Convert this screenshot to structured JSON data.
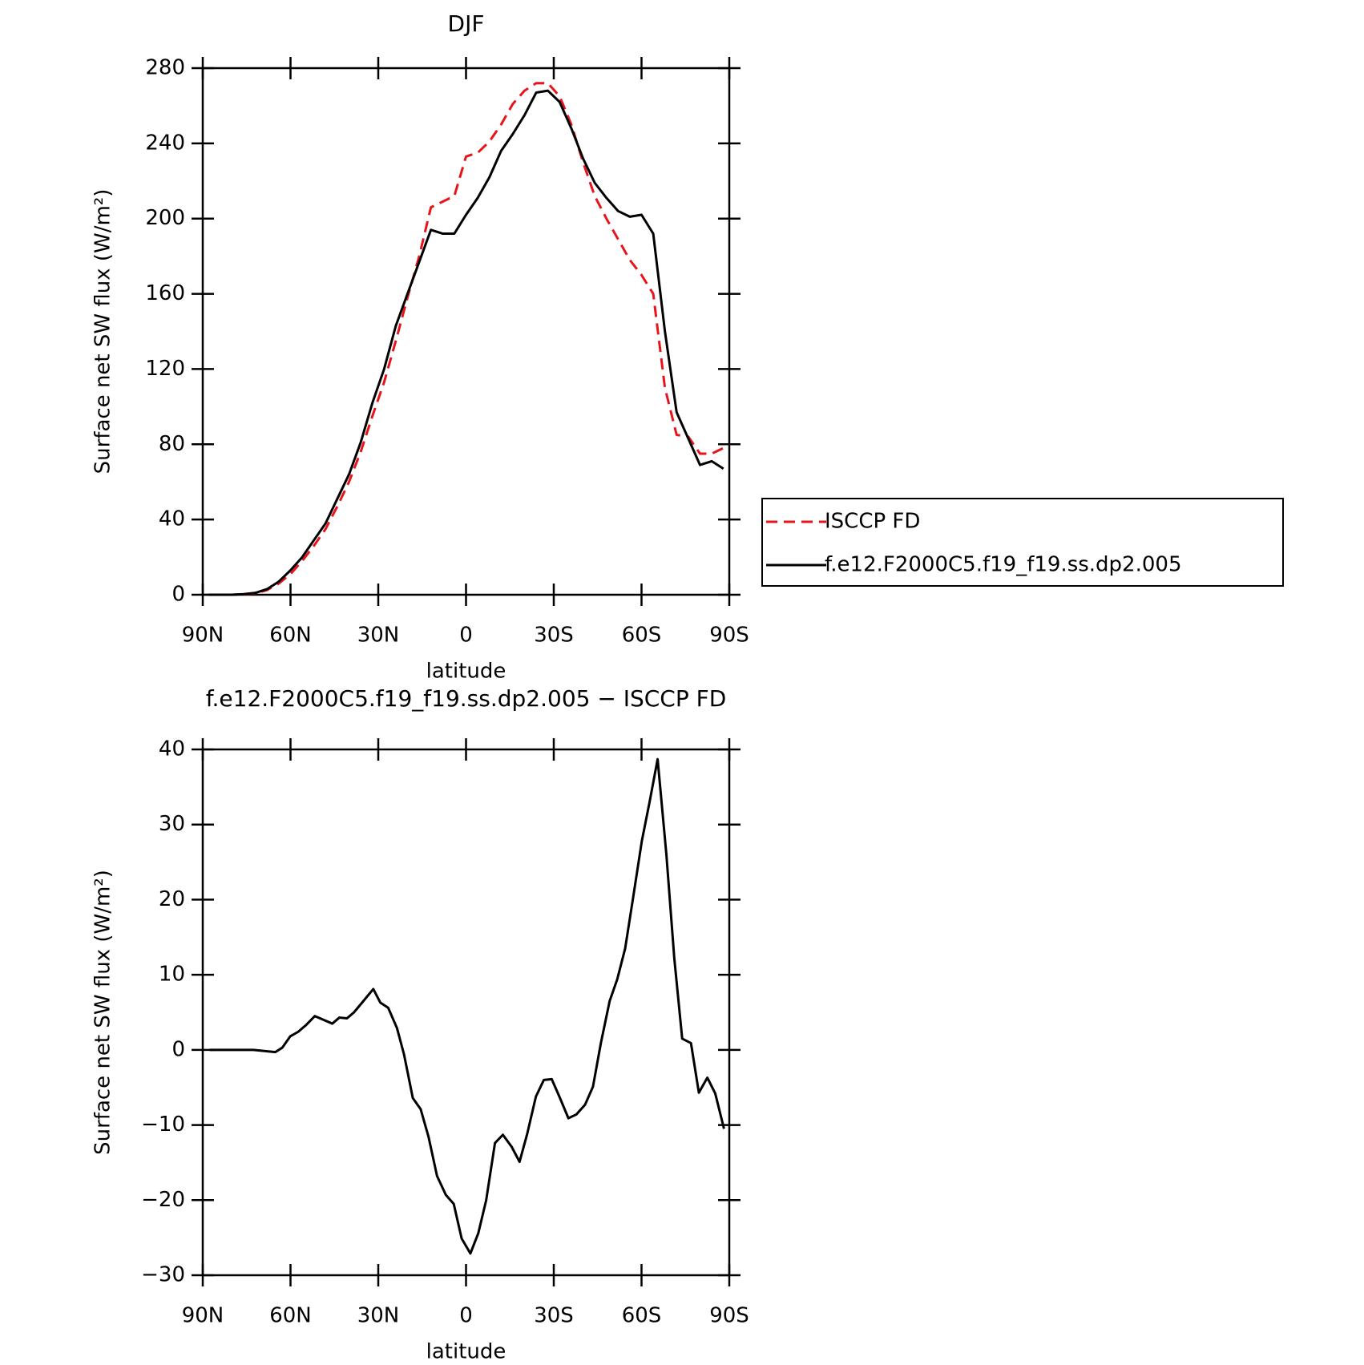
{
  "chart_data": [
    {
      "type": "line",
      "title": "DJF",
      "xlabel": "latitude",
      "ylabel": "Surface net SW flux (W/m²)",
      "xlim": [
        90,
        -90
      ],
      "xticks": [
        {
          "value": 90,
          "label": "90N"
        },
        {
          "value": 60,
          "label": "60N"
        },
        {
          "value": 30,
          "label": "30N"
        },
        0,
        {
          "value": -30,
          "label": "30S"
        },
        {
          "value": -60,
          "label": "60S"
        },
        {
          "value": -90,
          "label": "90S"
        }
      ],
      "ylim": [
        0,
        280
      ],
      "yticks": [
        0,
        40,
        80,
        120,
        160,
        200,
        240,
        280
      ],
      "legend": "outside-right",
      "x": [
        88,
        84,
        80,
        76,
        72,
        68,
        64,
        60,
        56,
        52,
        48,
        44,
        40,
        36,
        32,
        28,
        24,
        20,
        16,
        12,
        8,
        4,
        0,
        -4,
        -8,
        -12,
        -16,
        -20,
        -24,
        -28,
        -32,
        -36,
        -40,
        -44,
        -48,
        -52,
        -56,
        -60,
        -64,
        -68,
        -72,
        -76,
        -80,
        -84,
        -88
      ],
      "series": [
        {
          "name": "ISCCP FD",
          "color": "#e8141c",
          "linestyle": "dashed",
          "values": [
            0,
            0,
            0,
            0.2,
            0.8,
            2.5,
            6,
            11,
            18,
            26,
            35,
            47,
            60,
            76,
            95,
            113,
            135,
            158,
            180,
            206,
            209,
            212,
            233,
            235,
            241,
            250,
            261,
            268,
            272,
            272,
            265,
            250,
            230,
            212,
            200,
            189,
            178,
            170,
            160,
            110,
            85,
            84,
            75,
            75,
            78
          ]
        },
        {
          "name": "f.e12.F2000C5.f19_f19.ss.dp2.005",
          "color": "#000000",
          "linestyle": "solid",
          "values": [
            0,
            0,
            0,
            0.3,
            1,
            3,
            7,
            13,
            20,
            29,
            38,
            51,
            64,
            81,
            102,
            120,
            143,
            160,
            177,
            194,
            192,
            192,
            202,
            211,
            222,
            236,
            245,
            255,
            267,
            268,
            262,
            248,
            232,
            219,
            211,
            204,
            201,
            202,
            192,
            140,
            97,
            83,
            69,
            71,
            67
          ]
        }
      ]
    },
    {
      "type": "line",
      "title": "f.e12.F2000C5.f19_f19.ss.dp2.005 − ISCCP FD",
      "xlabel": "latitude",
      "ylabel": "Surface net SW flux (W/m²)",
      "xlim": [
        90,
        -90
      ],
      "xticks": [
        {
          "value": 90,
          "label": "90N"
        },
        {
          "value": 60,
          "label": "60N"
        },
        {
          "value": 30,
          "label": "30N"
        },
        0,
        {
          "value": -30,
          "label": "30S"
        },
        {
          "value": -60,
          "label": "60S"
        },
        {
          "value": -90,
          "label": "90S"
        }
      ],
      "ylim": [
        -30,
        40
      ],
      "yticks": [
        {
          "value": -30,
          "label": "−30"
        },
        {
          "value": -20,
          "label": "−20"
        },
        {
          "value": -10,
          "label": "−10"
        },
        0,
        10,
        20,
        30,
        40
      ],
      "x": [
        87.6,
        72.7,
        65.2,
        62.8,
        60.1,
        57.4,
        54.7,
        51.7,
        48.7,
        45.7,
        43.3,
        40.7,
        38.3,
        35.3,
        31.7,
        29.3,
        26.6,
        23.6,
        21.2,
        18.2,
        15.5,
        12.8,
        9.9,
        6.9,
        4.2,
        1.5,
        -1.5,
        -4.2,
        -6.9,
        -9.9,
        -12.6,
        -15.6,
        -18.3,
        -20.9,
        -23.9,
        -26.6,
        -29.3,
        -32,
        -35,
        -37.7,
        -40.7,
        -43.4,
        -46.1,
        -49.1,
        -51.7,
        -54.4,
        -57.1,
        -60.1,
        -62.8,
        -65.5,
        -68.5,
        -71.2,
        -73.9,
        -76.9,
        -79.6,
        -82.5,
        -85.2,
        -88.2
      ],
      "series": [
        {
          "color": "#000000",
          "linestyle": "solid",
          "values": [
            0,
            0,
            -0.3,
            0.3,
            1.8,
            2.4,
            3.3,
            4.5,
            4.0,
            3.5,
            4.3,
            4.2,
            5,
            6.4,
            8.1,
            6.3,
            5.6,
            2.9,
            -0.6,
            -6.4,
            -7.9,
            -11.6,
            -16.8,
            -19.3,
            -20.5,
            -25.1,
            -27.1,
            -24.4,
            -20,
            -12.4,
            -11.3,
            -12.9,
            -14.9,
            -11.2,
            -6.2,
            -4,
            -3.9,
            -6.3,
            -9.1,
            -8.6,
            -7.3,
            -4.9,
            0.9,
            6.5,
            9.4,
            13.5,
            20.2,
            27.8,
            33.1,
            38.7,
            26,
            12.2,
            1.5,
            0.9,
            -5.7,
            -3.7,
            -5.8,
            -10.5
          ]
        }
      ]
    }
  ]
}
